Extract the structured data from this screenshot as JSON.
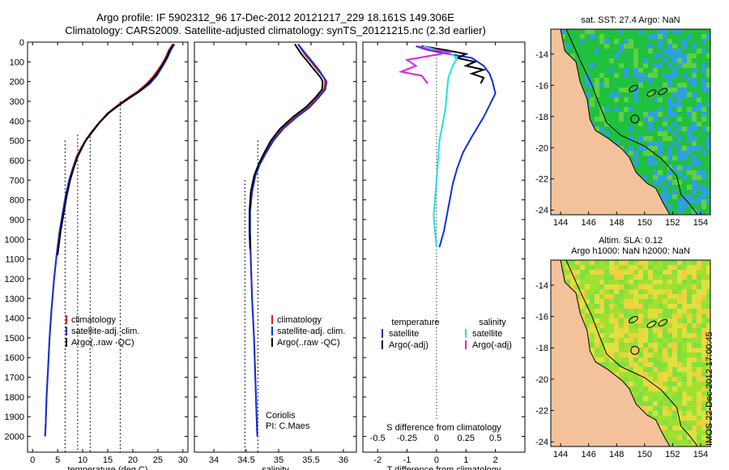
{
  "header": {
    "title_line1": "Argo profile: IF 5902312_96 17-Dec-2012 20121217_229 18.161S 149.306E",
    "title_line2": "Climatology: CARS2009. Satellite-adjusted climatology: synTS_20121215.nc (2.3d earlier)"
  },
  "credit": "IMOS 22-Dec-2012 17:00:45",
  "depth_axis": {
    "ylim": [
      0,
      2080
    ],
    "ticks": [
      0,
      100,
      200,
      300,
      400,
      500,
      600,
      700,
      800,
      900,
      1000,
      1100,
      1200,
      1300,
      1400,
      1500,
      1600,
      1700,
      1800,
      1900,
      2000
    ]
  },
  "colors": {
    "climatology": "#e02020",
    "satellite": "#1030e0",
    "argo": "#000000",
    "s_sat": "#20e0e0",
    "s_argo": "#e020e0",
    "land": "#f4c29a",
    "sea_green": "#20c040",
    "sea_blue": "#30a0e0",
    "sea_yellow": "#e0e040",
    "sea_lime": "#a0e030"
  },
  "chart_data": [
    {
      "type": "line",
      "panel": "temperature",
      "xlabel": "temperature (deg C)",
      "xlim": [
        -1,
        31
      ],
      "xticks": [
        0,
        5,
        10,
        15,
        20,
        25,
        30
      ],
      "legend": {
        "placement": "bottom-left",
        "entries": [
          "climatology",
          "satellite-adj. clim.",
          "Argo(..raw -QC)"
        ]
      },
      "series": [
        {
          "name": "climatology",
          "color_key": "climatology",
          "points": [
            [
              28.0,
              10
            ],
            [
              27.2,
              40
            ],
            [
              26.5,
              80
            ],
            [
              25.6,
              120
            ],
            [
              24.2,
              170
            ],
            [
              22.8,
              210
            ],
            [
              21.0,
              250
            ],
            [
              19.2,
              280
            ],
            [
              17.0,
              320
            ],
            [
              15.0,
              360
            ],
            [
              13.2,
              410
            ],
            [
              11.6,
              460
            ],
            [
              10.5,
              500
            ],
            [
              9.6,
              540
            ],
            [
              8.8,
              580
            ],
            [
              8.0,
              640
            ],
            [
              7.3,
              700
            ],
            [
              6.6,
              780
            ],
            [
              6.0,
              870
            ],
            [
              5.4,
              960
            ],
            [
              4.8,
              1080
            ],
            [
              4.3,
              1200
            ],
            [
              3.8,
              1350
            ],
            [
              3.4,
              1500
            ],
            [
              3.1,
              1650
            ],
            [
              2.8,
              1800
            ],
            [
              2.6,
              1950
            ],
            [
              2.5,
              2000
            ]
          ]
        },
        {
          "name": "satellite-adj. clim.",
          "color_key": "satellite",
          "points": [
            [
              28.3,
              10
            ],
            [
              27.6,
              40
            ],
            [
              26.9,
              80
            ],
            [
              26.0,
              120
            ],
            [
              24.8,
              170
            ],
            [
              23.4,
              210
            ],
            [
              21.4,
              250
            ],
            [
              19.6,
              280
            ],
            [
              17.3,
              320
            ],
            [
              15.2,
              360
            ],
            [
              13.3,
              410
            ],
            [
              11.7,
              460
            ],
            [
              10.6,
              500
            ],
            [
              9.7,
              540
            ],
            [
              8.9,
              580
            ],
            [
              8.1,
              640
            ],
            [
              7.3,
              700
            ],
            [
              6.6,
              780
            ],
            [
              6.0,
              870
            ],
            [
              5.4,
              960
            ],
            [
              4.8,
              1080
            ],
            [
              4.3,
              1200
            ],
            [
              3.8,
              1350
            ],
            [
              3.4,
              1500
            ],
            [
              3.1,
              1650
            ],
            [
              2.8,
              1800
            ],
            [
              2.6,
              1950
            ],
            [
              2.5,
              2000
            ]
          ]
        },
        {
          "name": "Argo(..raw -QC)",
          "color_key": "argo",
          "points": [
            [
              28.2,
              10
            ],
            [
              27.4,
              40
            ],
            [
              26.7,
              80
            ],
            [
              25.8,
              120
            ],
            [
              24.5,
              170
            ],
            [
              23.1,
              210
            ],
            [
              21.2,
              250
            ],
            [
              19.4,
              280
            ],
            [
              17.2,
              320
            ],
            [
              15.1,
              360
            ],
            [
              13.3,
              410
            ],
            [
              11.8,
              460
            ],
            [
              10.6,
              500
            ],
            [
              9.8,
              540
            ],
            [
              9.0,
              580
            ],
            [
              8.2,
              640
            ],
            [
              7.5,
              700
            ],
            [
              6.8,
              780
            ],
            [
              6.2,
              870
            ],
            [
              5.6,
              960
            ],
            [
              5.0,
              1080
            ]
          ]
        }
      ],
      "dotted_columns": [
        [
          6.5,
          500,
          2080
        ],
        [
          9.0,
          470,
          2080
        ],
        [
          11.5,
          480,
          2080
        ],
        [
          17.5,
          300,
          2080
        ]
      ]
    },
    {
      "type": "line",
      "panel": "salinity",
      "xlabel": "salinity",
      "xlim": [
        33.7,
        36.2
      ],
      "xticks": [
        34,
        34.5,
        35,
        35.5,
        36
      ],
      "xticklabels": [
        "34",
        "34.5",
        "35",
        "35.5",
        "36"
      ],
      "legend": {
        "placement": "bottom-center",
        "entries": [
          "climatology",
          "satellite-adj. clim.",
          "Argo(..raw -QC)"
        ]
      },
      "annotation": [
        "Coriolis",
        "PI: C.Maes"
      ],
      "series": [
        {
          "name": "climatology",
          "color_key": "climatology",
          "points": [
            [
              35.3,
              10
            ],
            [
              35.4,
              60
            ],
            [
              35.5,
              100
            ],
            [
              35.6,
              140
            ],
            [
              35.7,
              180
            ],
            [
              35.72,
              200
            ],
            [
              35.7,
              240
            ],
            [
              35.6,
              280
            ],
            [
              35.45,
              330
            ],
            [
              35.25,
              380
            ],
            [
              35.05,
              440
            ],
            [
              34.9,
              500
            ],
            [
              34.8,
              560
            ],
            [
              34.7,
              620
            ],
            [
              34.63,
              680
            ],
            [
              34.58,
              760
            ],
            [
              34.55,
              860
            ],
            [
              34.55,
              960
            ],
            [
              34.57,
              1100
            ],
            [
              34.59,
              1300
            ],
            [
              34.62,
              1500
            ],
            [
              34.64,
              1700
            ],
            [
              34.66,
              1900
            ],
            [
              34.67,
              2000
            ]
          ]
        },
        {
          "name": "satellite-adj. clim.",
          "color_key": "satellite",
          "points": [
            [
              35.3,
              10
            ],
            [
              35.42,
              60
            ],
            [
              35.52,
              100
            ],
            [
              35.62,
              140
            ],
            [
              35.7,
              180
            ],
            [
              35.74,
              200
            ],
            [
              35.72,
              240
            ],
            [
              35.62,
              280
            ],
            [
              35.48,
              330
            ],
            [
              35.28,
              380
            ],
            [
              35.07,
              440
            ],
            [
              34.92,
              500
            ],
            [
              34.81,
              560
            ],
            [
              34.71,
              620
            ],
            [
              34.64,
              680
            ],
            [
              34.59,
              760
            ],
            [
              34.56,
              860
            ],
            [
              34.56,
              960
            ],
            [
              34.57,
              1100
            ],
            [
              34.59,
              1300
            ],
            [
              34.62,
              1500
            ],
            [
              34.64,
              1700
            ],
            [
              34.66,
              1900
            ],
            [
              34.67,
              2000
            ]
          ]
        },
        {
          "name": "Argo(..raw -QC)",
          "color_key": "argo",
          "points": [
            [
              35.25,
              10
            ],
            [
              35.35,
              60
            ],
            [
              35.45,
              100
            ],
            [
              35.55,
              140
            ],
            [
              35.65,
              180
            ],
            [
              35.68,
              200
            ],
            [
              35.67,
              240
            ],
            [
              35.57,
              280
            ],
            [
              35.42,
              330
            ],
            [
              35.22,
              380
            ],
            [
              35.02,
              440
            ],
            [
              34.88,
              500
            ],
            [
              34.78,
              560
            ],
            [
              34.69,
              620
            ],
            [
              34.62,
              680
            ],
            [
              34.57,
              760
            ],
            [
              34.55,
              860
            ],
            [
              34.55,
              960
            ],
            [
              34.56,
              1050
            ]
          ]
        }
      ],
      "dotted_columns": [
        [
          34.48,
          700,
          2080
        ],
        [
          34.68,
          500,
          2080
        ]
      ]
    },
    {
      "type": "line",
      "panel": "difference",
      "xlabel": "T difference from climatology",
      "xlabel_top": "S difference from climatology",
      "xlim": [
        -2.5,
        3.0
      ],
      "xticks": [
        -2,
        -1,
        0,
        1,
        2
      ],
      "xticks_top": [
        -0.5,
        -0.25,
        0,
        0.25,
        0.5
      ],
      "xtick_top_labels": [
        "-0.5",
        "-0.25",
        "0",
        "0.25",
        "0.5"
      ],
      "legend": {
        "placement": "bottom",
        "headers": [
          "temperature",
          "salinity"
        ],
        "entries": [
          "satellite",
          "Argo(-adj)",
          "satellite",
          "Argo(-adj)"
        ]
      },
      "series": [
        {
          "name": "satellite",
          "color_key": "satellite",
          "points": [
            [
              -0.7,
              20
            ],
            [
              -0.3,
              40
            ],
            [
              0.4,
              60
            ],
            [
              1.2,
              80
            ],
            [
              1.6,
              120
            ],
            [
              1.8,
              160
            ],
            [
              1.9,
              200
            ],
            [
              2.0,
              260
            ],
            [
              1.8,
              320
            ],
            [
              1.6,
              380
            ],
            [
              1.4,
              430
            ],
            [
              1.2,
              480
            ],
            [
              0.9,
              560
            ],
            [
              0.7,
              640
            ],
            [
              0.55,
              720
            ],
            [
              0.45,
              800
            ],
            [
              0.35,
              880
            ],
            [
              0.25,
              960
            ],
            [
              0.1,
              1040
            ]
          ]
        },
        {
          "name": "Argo(-adj)",
          "color_key": "argo",
          "points": [
            [
              -0.5,
              20
            ],
            [
              0.3,
              40
            ],
            [
              1.0,
              60
            ],
            [
              0.7,
              80
            ],
            [
              1.3,
              100
            ],
            [
              1.0,
              120
            ],
            [
              1.6,
              140
            ],
            [
              1.2,
              160
            ],
            [
              1.6,
              180
            ],
            [
              1.5,
              210
            ]
          ]
        },
        {
          "name": "satellite (S)",
          "color_key": "s_sat",
          "points": [
            [
              -0.45,
              20
            ],
            [
              0.0,
              40
            ],
            [
              0.5,
              60
            ],
            [
              0.7,
              80
            ],
            [
              0.55,
              120
            ],
            [
              0.4,
              180
            ],
            [
              0.35,
              260
            ],
            [
              0.3,
              340
            ],
            [
              0.2,
              420
            ],
            [
              0.1,
              500
            ],
            [
              0.05,
              600
            ],
            [
              0.0,
              700
            ],
            [
              -0.05,
              800
            ],
            [
              -0.1,
              880
            ],
            [
              -0.05,
              960
            ],
            [
              0.0,
              1040
            ]
          ]
        },
        {
          "name": "Argo(-adj) (S)",
          "color_key": "s_argo",
          "points": [
            [
              -0.6,
              20
            ],
            [
              -0.2,
              40
            ],
            [
              0.5,
              50
            ],
            [
              -1.0,
              90
            ],
            [
              -0.7,
              120
            ],
            [
              -1.2,
              150
            ],
            [
              -0.5,
              170
            ],
            [
              -0.3,
              210
            ]
          ]
        }
      ]
    }
  ],
  "maps": [
    {
      "title_lines": [
        "sat. SST: 27.4 Argo: NaN"
      ],
      "xticks": [
        144,
        146,
        148,
        150,
        152,
        154
      ],
      "yticks": [
        -14,
        -16,
        -18,
        -20,
        -22,
        -24
      ],
      "xlim": [
        143.3,
        154.7
      ],
      "ylim": [
        -24.3,
        -12.4
      ],
      "field": "sst"
    },
    {
      "title_lines": [
        "Altim. SLA: 0.12",
        "Argo h1000: NaN h2000: NaN"
      ],
      "xticks": [
        144,
        146,
        148,
        150,
        152,
        154
      ],
      "yticks": [
        -14,
        -16,
        -18,
        -20,
        -22,
        -24
      ],
      "xlim": [
        143.3,
        154.7
      ],
      "ylim": [
        -24.3,
        -12.4
      ],
      "field": "sla"
    }
  ]
}
